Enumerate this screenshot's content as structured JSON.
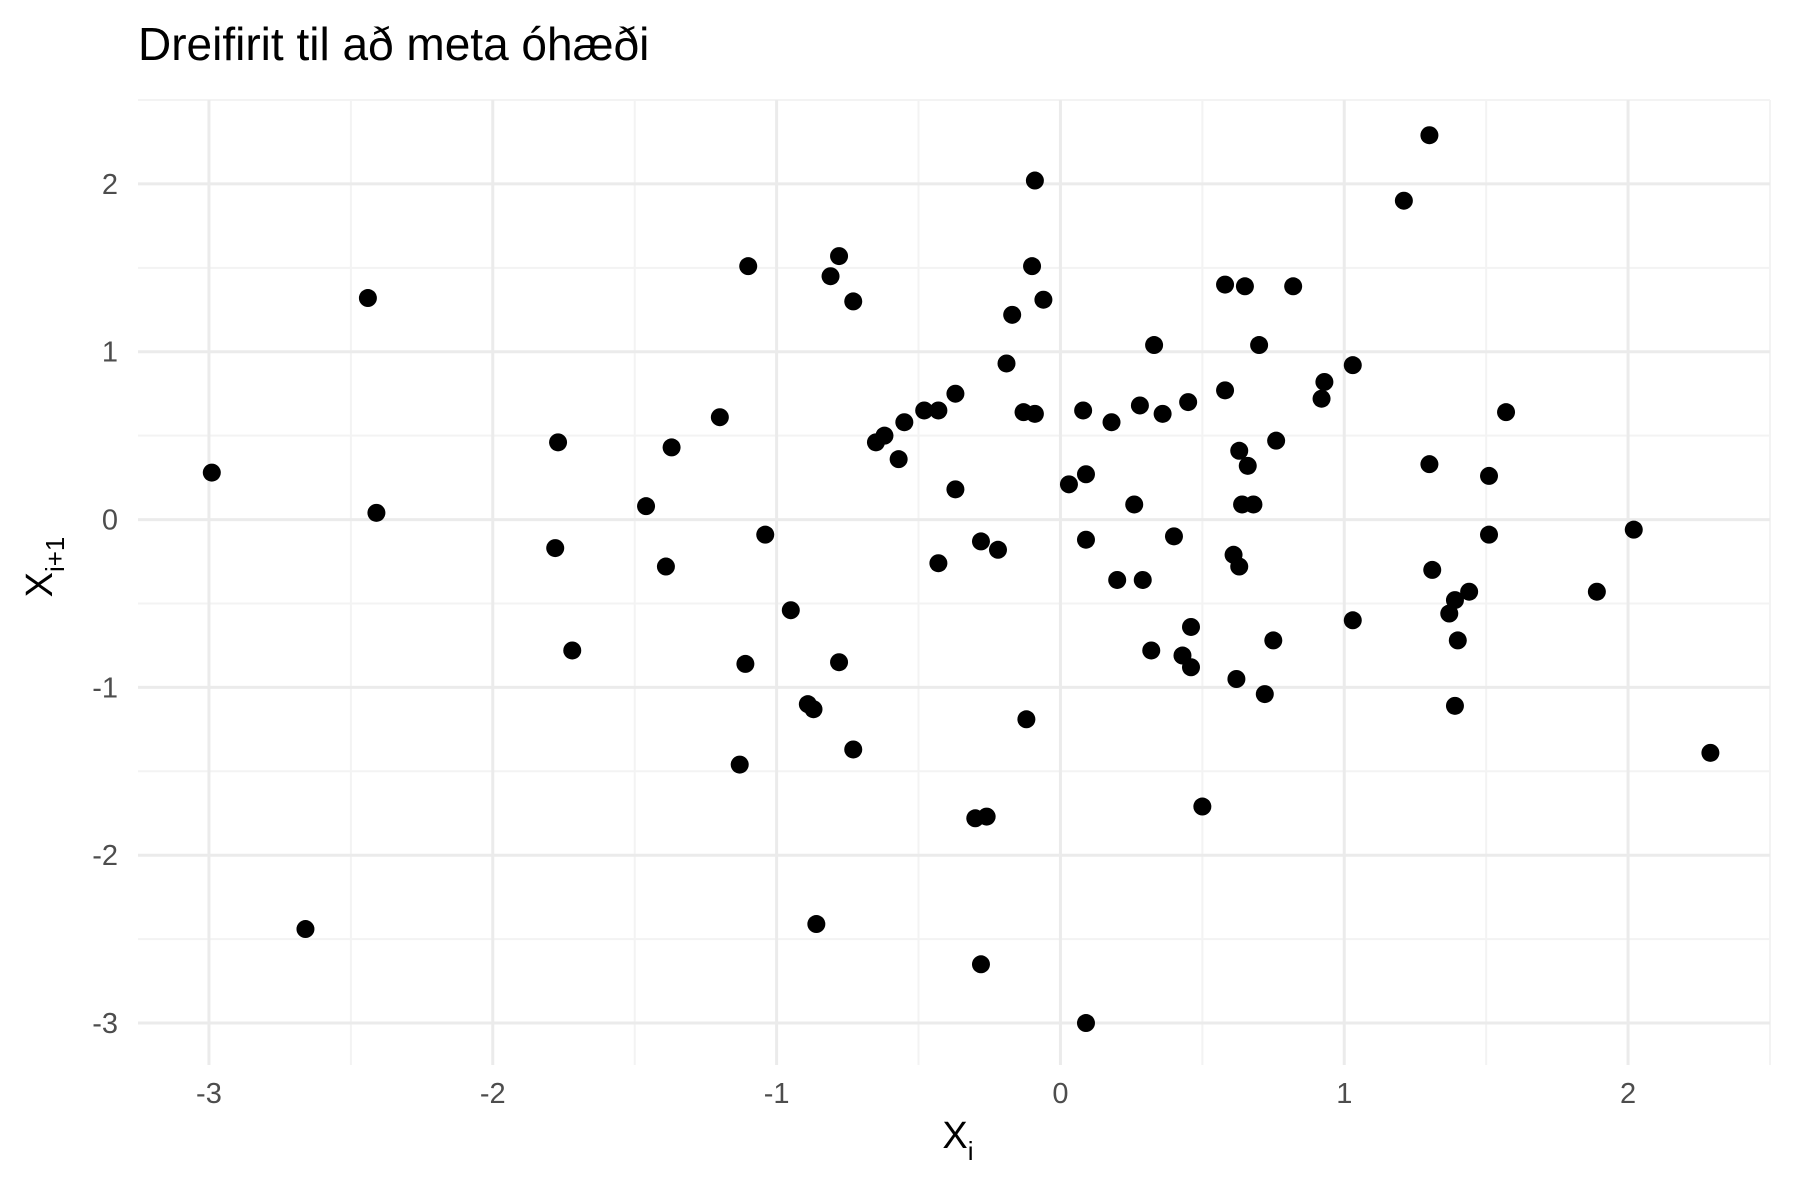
{
  "chart_data": {
    "type": "scatter",
    "title": "Dreifirit til að meta óhæði",
    "xlabel": {
      "main": "X",
      "sub": "i"
    },
    "ylabel": {
      "main": "X",
      "sub": "i+1"
    },
    "xlim": [
      -3.25,
      2.5
    ],
    "ylim": [
      -3.25,
      2.5
    ],
    "xticks": [
      -3,
      -2,
      -1,
      0,
      1,
      2
    ],
    "yticks": [
      -3,
      -2,
      -1,
      0,
      1,
      2
    ],
    "xticklabels": [
      "-3",
      "-2",
      "-1",
      "0",
      "1",
      "2"
    ],
    "yticklabels": [
      "-3",
      "-2",
      "-1",
      "0",
      "1",
      "2"
    ],
    "grid": true,
    "points": [
      {
        "x": -2.99,
        "y": 0.28
      },
      {
        "x": -2.66,
        "y": -2.44
      },
      {
        "x": -2.44,
        "y": 1.32
      },
      {
        "x": -2.41,
        "y": 0.04
      },
      {
        "x": -1.77,
        "y": 0.46
      },
      {
        "x": -1.78,
        "y": -0.17
      },
      {
        "x": -1.72,
        "y": -0.78
      },
      {
        "x": -1.46,
        "y": 0.08
      },
      {
        "x": -1.39,
        "y": -0.28
      },
      {
        "x": -1.37,
        "y": 0.43
      },
      {
        "x": -1.2,
        "y": 0.61
      },
      {
        "x": -1.13,
        "y": -1.46
      },
      {
        "x": -1.1,
        "y": 1.51
      },
      {
        "x": -1.11,
        "y": -0.86
      },
      {
        "x": -1.04,
        "y": -0.09
      },
      {
        "x": -0.95,
        "y": -0.54
      },
      {
        "x": -0.89,
        "y": -1.1
      },
      {
        "x": -0.87,
        "y": -1.13
      },
      {
        "x": -0.86,
        "y": -2.41
      },
      {
        "x": -0.81,
        "y": 1.45
      },
      {
        "x": -0.78,
        "y": 1.57
      },
      {
        "x": -0.78,
        "y": -0.85
      },
      {
        "x": -0.73,
        "y": 1.3
      },
      {
        "x": -0.73,
        "y": -1.37
      },
      {
        "x": -0.65,
        "y": 0.46
      },
      {
        "x": -0.62,
        "y": 0.5
      },
      {
        "x": -0.57,
        "y": 0.36
      },
      {
        "x": -0.55,
        "y": 0.58
      },
      {
        "x": -0.48,
        "y": 0.65
      },
      {
        "x": -0.43,
        "y": 0.65
      },
      {
        "x": -0.43,
        "y": -0.26
      },
      {
        "x": -0.37,
        "y": 0.75
      },
      {
        "x": -0.37,
        "y": 0.18
      },
      {
        "x": -0.3,
        "y": -1.78
      },
      {
        "x": -0.28,
        "y": -0.13
      },
      {
        "x": -0.28,
        "y": -2.65
      },
      {
        "x": -0.26,
        "y": -1.77
      },
      {
        "x": -0.22,
        "y": -0.18
      },
      {
        "x": -0.19,
        "y": 0.93
      },
      {
        "x": -0.17,
        "y": 1.22
      },
      {
        "x": -0.13,
        "y": 0.64
      },
      {
        "x": -0.12,
        "y": -1.19
      },
      {
        "x": -0.1,
        "y": 1.51
      },
      {
        "x": -0.09,
        "y": 2.02
      },
      {
        "x": -0.09,
        "y": 0.63
      },
      {
        "x": -0.06,
        "y": 1.31
      },
      {
        "x": 0.03,
        "y": 0.21
      },
      {
        "x": 0.08,
        "y": 0.65
      },
      {
        "x": 0.09,
        "y": 0.27
      },
      {
        "x": 0.09,
        "y": -0.12
      },
      {
        "x": 0.09,
        "y": -3.0
      },
      {
        "x": 0.18,
        "y": 0.58
      },
      {
        "x": 0.2,
        "y": -0.36
      },
      {
        "x": 0.26,
        "y": 0.09
      },
      {
        "x": 0.28,
        "y": 0.68
      },
      {
        "x": 0.29,
        "y": -0.36
      },
      {
        "x": 0.32,
        "y": -0.78
      },
      {
        "x": 0.33,
        "y": 1.04
      },
      {
        "x": 0.36,
        "y": 0.63
      },
      {
        "x": 0.4,
        "y": -0.1
      },
      {
        "x": 0.43,
        "y": -0.81
      },
      {
        "x": 0.45,
        "y": 0.7
      },
      {
        "x": 0.46,
        "y": -0.64
      },
      {
        "x": 0.46,
        "y": -0.88
      },
      {
        "x": 0.5,
        "y": -1.71
      },
      {
        "x": 0.58,
        "y": 1.4
      },
      {
        "x": 0.58,
        "y": 0.77
      },
      {
        "x": 0.61,
        "y": -0.21
      },
      {
        "x": 0.62,
        "y": -0.95
      },
      {
        "x": 0.63,
        "y": 0.41
      },
      {
        "x": 0.63,
        "y": -0.28
      },
      {
        "x": 0.64,
        "y": 0.09
      },
      {
        "x": 0.65,
        "y": 1.39
      },
      {
        "x": 0.66,
        "y": 0.32
      },
      {
        "x": 0.68,
        "y": 0.09
      },
      {
        "x": 0.7,
        "y": 1.04
      },
      {
        "x": 0.72,
        "y": -1.04
      },
      {
        "x": 0.75,
        "y": -0.72
      },
      {
        "x": 0.76,
        "y": 0.47
      },
      {
        "x": 0.82,
        "y": 1.39
      },
      {
        "x": 0.92,
        "y": 0.72
      },
      {
        "x": 0.93,
        "y": 0.82
      },
      {
        "x": 1.03,
        "y": 0.92
      },
      {
        "x": 1.03,
        "y": -0.6
      },
      {
        "x": 1.21,
        "y": 1.9
      },
      {
        "x": 1.3,
        "y": 2.29
      },
      {
        "x": 1.3,
        "y": 0.33
      },
      {
        "x": 1.31,
        "y": -0.3
      },
      {
        "x": 1.37,
        "y": -0.56
      },
      {
        "x": 1.39,
        "y": -0.48
      },
      {
        "x": 1.39,
        "y": -1.11
      },
      {
        "x": 1.4,
        "y": -0.72
      },
      {
        "x": 1.44,
        "y": -0.43
      },
      {
        "x": 1.51,
        "y": 0.26
      },
      {
        "x": 1.51,
        "y": -0.09
      },
      {
        "x": 1.57,
        "y": 0.64
      },
      {
        "x": 1.89,
        "y": -0.43
      },
      {
        "x": 2.02,
        "y": -0.06
      },
      {
        "x": 2.29,
        "y": -1.39
      }
    ]
  }
}
